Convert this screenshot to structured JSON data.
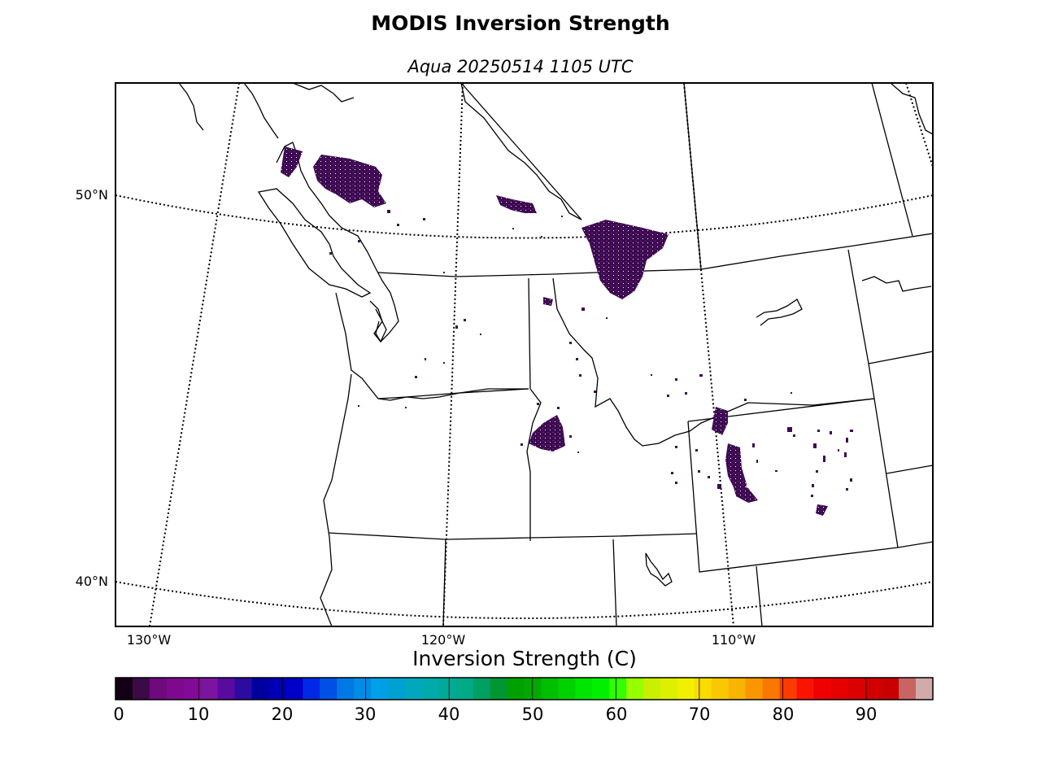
{
  "title": "MODIS Inversion Strength",
  "subtitle": "Aqua 20250514 1105 UTC",
  "map": {
    "lat_labels": [
      "50°N",
      "40°N"
    ],
    "lon_labels": [
      "130°W",
      "120°W",
      "110°W"
    ],
    "data_color": "#3c0a50"
  },
  "colorbar": {
    "label": "Inversion Strength (C)",
    "ticks": [
      "0",
      "10",
      "20",
      "30",
      "40",
      "50",
      "60",
      "70",
      "80",
      "90"
    ],
    "colors": [
      "#140014",
      "#3c0a46",
      "#6e0a7d",
      "#7d0a8c",
      "#820a96",
      "#7d14a0",
      "#5a0aa0",
      "#2d0aa0",
      "#0000a0",
      "#0000b4",
      "#0000c8",
      "#0028e6",
      "#0050e6",
      "#0078e6",
      "#008ce6",
      "#00a0e6",
      "#00a0d2",
      "#00a8be",
      "#00aaaa",
      "#00aa96",
      "#00aa87",
      "#00a064",
      "#009632",
      "#00a000",
      "#00aa00",
      "#00be00",
      "#00d200",
      "#00e600",
      "#00f000",
      "#32ff00",
      "#96ff00",
      "#c8f000",
      "#dcf000",
      "#f0f000",
      "#fadc00",
      "#fac800",
      "#fab400",
      "#fa9600",
      "#fa7800",
      "#fa3c00",
      "#fa1400",
      "#f00000",
      "#e60000",
      "#dc0000",
      "#d20000",
      "#c80000",
      "#c86464",
      "#d2aaaa"
    ]
  }
}
